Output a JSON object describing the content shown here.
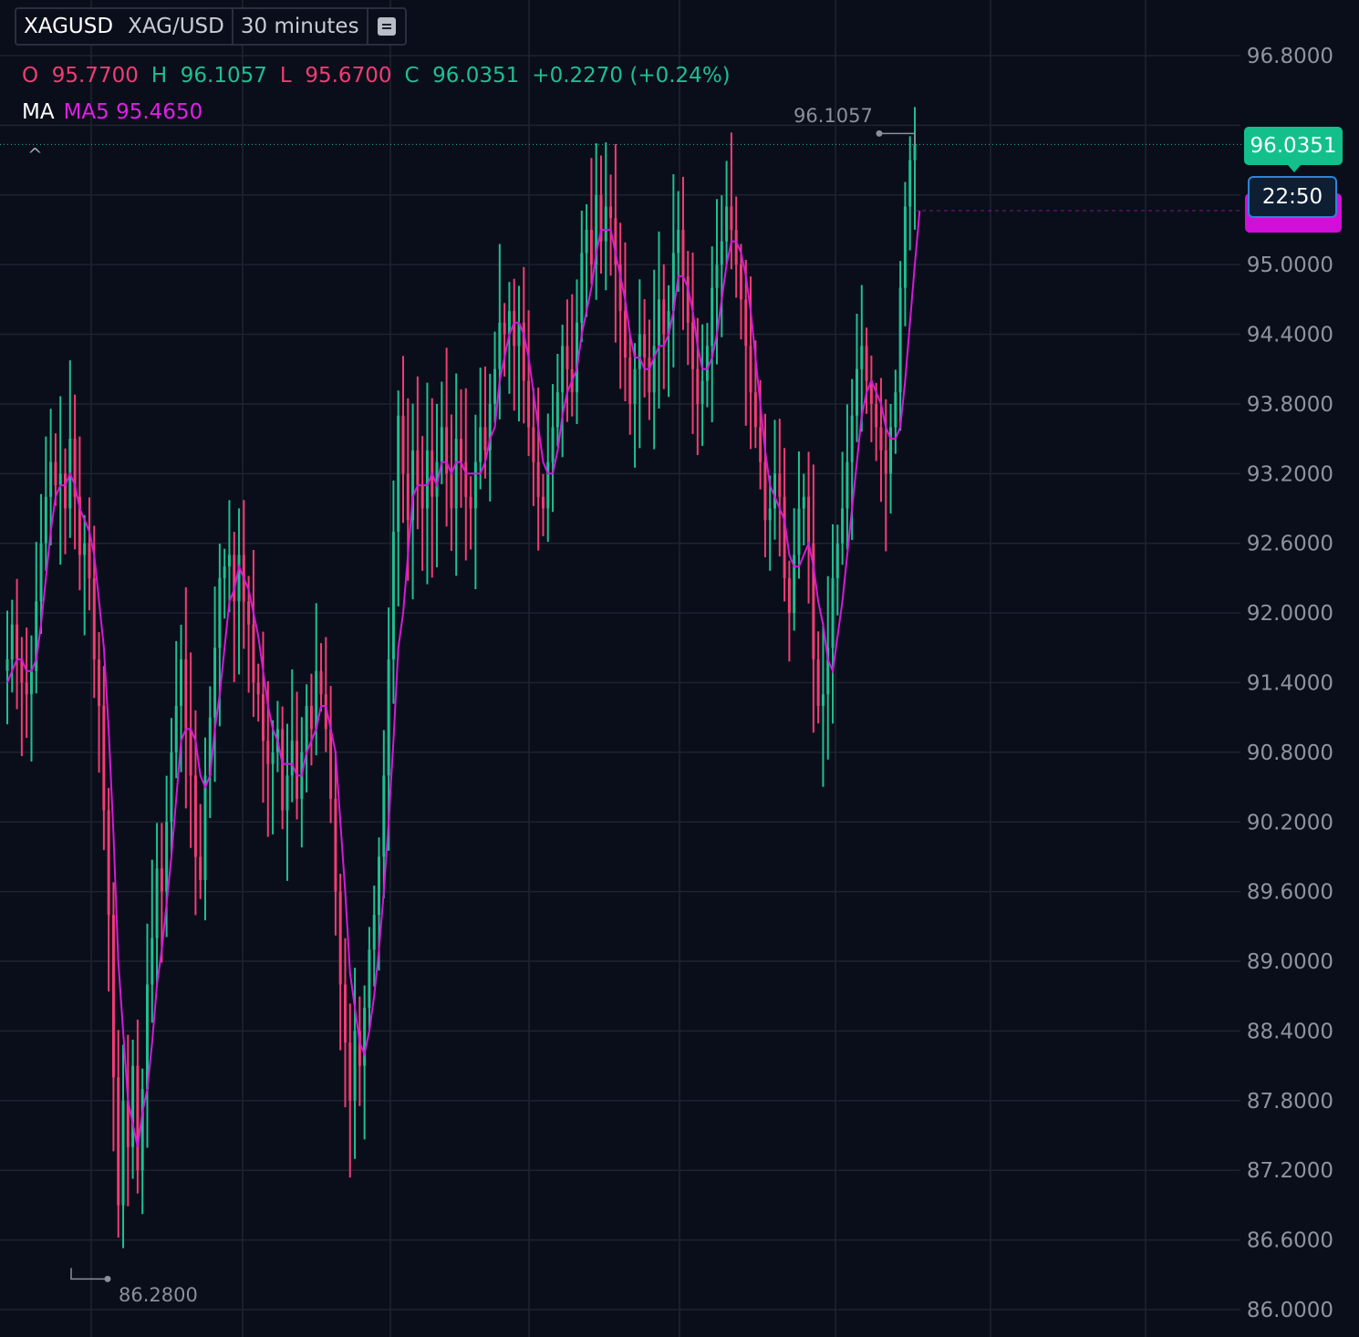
{
  "header": {
    "symbol": "XAGUSD",
    "pair": "XAG/USD",
    "interval": "30 minutes"
  },
  "ohlc": {
    "o_label": "O",
    "o_value": "95.7700",
    "h_label": "H",
    "h_value": "96.1057",
    "l_label": "L",
    "l_value": "95.6700",
    "c_label": "C",
    "c_value": "96.0351",
    "change": "+0.2270 (+0.24%)"
  },
  "indicator": {
    "label": "MA",
    "value": "MA5 95.4650"
  },
  "current_price_tag": "96.0351",
  "countdown": "22:50",
  "colors": {
    "background": "#0a0e1a",
    "up": "#1fbf91",
    "down": "#f23c74",
    "ma_line": "#d31ad9",
    "grid": "#1e2330",
    "axis_text": "#8e93a0"
  },
  "chart_data": {
    "type": "candlestick",
    "title": "",
    "ylim": [
      86.0,
      96.8
    ],
    "y_ticks": [
      "96.8000",
      "95.0000",
      "94.4000",
      "93.8000",
      "93.2000",
      "92.6000",
      "92.0000",
      "91.4000",
      "90.8000",
      "90.2000",
      "89.6000",
      "89.0000",
      "88.4000",
      "87.8000",
      "87.2000",
      "86.6000",
      "86.0000"
    ],
    "series": [
      {
        "name": "MA5",
        "period": 5
      },
      {
        "values": "see close"
      }
    ],
    "high_marker": "96.1057",
    "low_marker": "86.2800",
    "close": [
      91.6,
      91.9,
      91.6,
      91.4,
      91.3,
      91.5,
      92.1,
      92.6,
      93.0,
      93.3,
      93.1,
      93.2,
      92.9,
      93.5,
      93.0,
      92.5,
      92.6,
      92.3,
      91.6,
      91.2,
      90.3,
      89.4,
      88.0,
      86.9,
      87.8,
      87.4,
      88.1,
      87.2,
      87.9,
      88.8,
      89.2,
      89.8,
      89.6,
      90.2,
      90.8,
      91.2,
      91.6,
      91.0,
      90.6,
      89.9,
      89.7,
      90.6,
      91.1,
      91.7,
      92.3,
      92.4,
      92.5,
      92.1,
      92.5,
      92.1,
      91.9,
      91.4,
      91.3,
      90.9,
      90.7,
      90.8,
      91.0,
      90.3,
      90.6,
      90.9,
      90.4,
      90.8,
      91.2,
      91.0,
      91.5,
      91.3,
      91.0,
      90.4,
      89.6,
      88.8,
      88.3,
      87.8,
      88.4,
      88.1,
      88.6,
      89.1,
      89.4,
      89.9,
      90.6,
      91.6,
      92.7,
      93.7,
      93.2,
      92.8,
      93.4,
      93.1,
      92.9,
      93.4,
      93.0,
      93.3,
      93.6,
      93.2,
      92.9,
      93.5,
      93.3,
      93.0,
      92.9,
      93.3,
      93.6,
      93.4,
      93.8,
      94.1,
      94.5,
      94.4,
      94.6,
      94.3,
      94.5,
      94.0,
      93.6,
      93.3,
      93.0,
      92.9,
      93.3,
      93.6,
      93.9,
      94.3,
      94.1,
      93.9,
      94.5,
      95.1,
      95.3,
      95.0,
      95.6,
      95.2,
      95.5,
      95.4,
      95.0,
      94.6,
      94.2,
      93.8,
      94.1,
      94.4,
      94.2,
      93.9,
      94.3,
      94.7,
      94.4,
      94.6,
      95.1,
      95.3,
      94.9,
      94.5,
      94.1,
      93.8,
      94.0,
      94.3,
      94.8,
      95.0,
      95.2,
      95.5,
      95.3,
      95.0,
      94.7,
      94.3,
      93.9,
      93.6,
      93.3,
      92.8,
      92.9,
      93.2,
      93.0,
      92.3,
      92.0,
      92.5,
      92.9,
      93.0,
      92.6,
      91.6,
      91.2,
      91.3,
      91.7,
      92.3,
      92.6,
      92.9,
      93.3,
      93.7,
      94.1,
      94.3,
      94.0,
      93.8,
      93.6,
      93.4,
      93.2,
      93.6,
      93.9,
      94.8,
      95.5,
      95.9,
      96.0351
    ],
    "ma5": [
      91.4,
      91.5,
      91.6,
      91.6,
      91.5,
      91.5,
      91.6,
      91.9,
      92.3,
      92.7,
      93.0,
      93.1,
      93.1,
      93.2,
      93.1,
      92.9,
      92.8,
      92.7,
      92.5,
      92.1,
      91.7,
      91.0,
      90.1,
      89.0,
      88.4,
      87.8,
      87.6,
      87.4,
      87.7,
      87.9,
      88.3,
      88.8,
      89.1,
      89.5,
      89.9,
      90.4,
      90.9,
      91.0,
      91.0,
      90.9,
      90.6,
      90.5,
      90.6,
      91.0,
      91.3,
      91.7,
      92.1,
      92.2,
      92.4,
      92.3,
      92.2,
      92.0,
      91.8,
      91.5,
      91.2,
      91.0,
      90.9,
      90.7,
      90.7,
      90.7,
      90.6,
      90.6,
      90.8,
      90.9,
      91.0,
      91.2,
      91.2,
      91.0,
      90.8,
      90.2,
      89.6,
      88.9,
      88.6,
      88.3,
      88.2,
      88.4,
      88.7,
      89.1,
      89.6,
      90.2,
      90.9,
      91.7,
      92.0,
      92.5,
      93.0,
      93.1,
      93.1,
      93.1,
      93.2,
      93.1,
      93.3,
      93.3,
      93.2,
      93.3,
      93.3,
      93.2,
      93.2,
      93.2,
      93.2,
      93.3,
      93.5,
      93.6,
      94.0,
      94.2,
      94.4,
      94.5,
      94.5,
      94.4,
      94.2,
      93.9,
      93.6,
      93.3,
      93.2,
      93.2,
      93.4,
      93.7,
      93.9,
      94.0,
      94.1,
      94.4,
      94.6,
      94.8,
      95.1,
      95.3,
      95.3,
      95.3,
      95.1,
      94.9,
      94.7,
      94.4,
      94.2,
      94.2,
      94.1,
      94.1,
      94.2,
      94.3,
      94.3,
      94.4,
      94.6,
      94.9,
      94.9,
      94.8,
      94.6,
      94.3,
      94.1,
      94.1,
      94.2,
      94.4,
      94.7,
      95.0,
      95.2,
      95.2,
      95.1,
      94.9,
      94.6,
      94.2,
      93.8,
      93.4,
      93.1,
      93.0,
      92.9,
      92.8,
      92.5,
      92.4,
      92.4,
      92.5,
      92.6,
      92.4,
      92.1,
      91.9,
      91.6,
      91.5,
      91.8,
      92.1,
      92.5,
      92.9,
      93.3,
      93.7,
      93.9,
      94.0,
      93.9,
      93.8,
      93.6,
      93.5,
      93.5,
      93.6,
      94.0,
      94.5,
      95.0,
      95.465
    ]
  }
}
